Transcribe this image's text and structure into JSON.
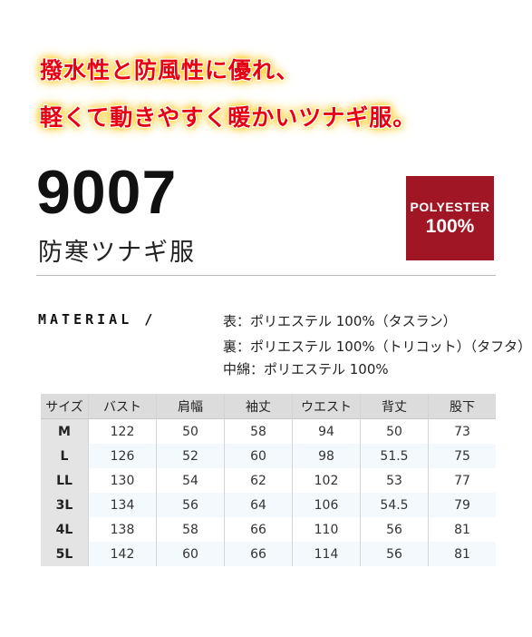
{
  "headline": {
    "line1": "撥水性と防風性に優れ、",
    "line2": "軽くて動きやすく暖かいツナギ服。"
  },
  "model_number": "9007",
  "product_name": "防寒ツナギ服",
  "badge": {
    "line1": "POLYESTER",
    "line2": "100%"
  },
  "material": {
    "label": "MATERIAL  /",
    "lines": [
      "表：ポリエステル 100%（タスラン）",
      "裏：ポリエステル 100%（トリコット）（タフタ）",
      "中綿：ポリエステル 100%"
    ]
  },
  "size_table": {
    "headers": [
      "サイズ",
      "バスト",
      "肩幅",
      "袖丈",
      "ウエスト",
      "背丈",
      "股下"
    ],
    "rows": [
      [
        "M",
        "122",
        "50",
        "58",
        "94",
        "50",
        "73"
      ],
      [
        "L",
        "126",
        "52",
        "60",
        "98",
        "51.5",
        "75"
      ],
      [
        "LL",
        "130",
        "54",
        "62",
        "102",
        "53",
        "77"
      ],
      [
        "3L",
        "134",
        "56",
        "64",
        "106",
        "54.5",
        "79"
      ],
      [
        "4L",
        "138",
        "58",
        "66",
        "110",
        "56",
        "81"
      ],
      [
        "5L",
        "142",
        "60",
        "66",
        "114",
        "56",
        "81"
      ]
    ]
  },
  "colors": {
    "headline": "#e60012",
    "badge": "#a01624"
  }
}
